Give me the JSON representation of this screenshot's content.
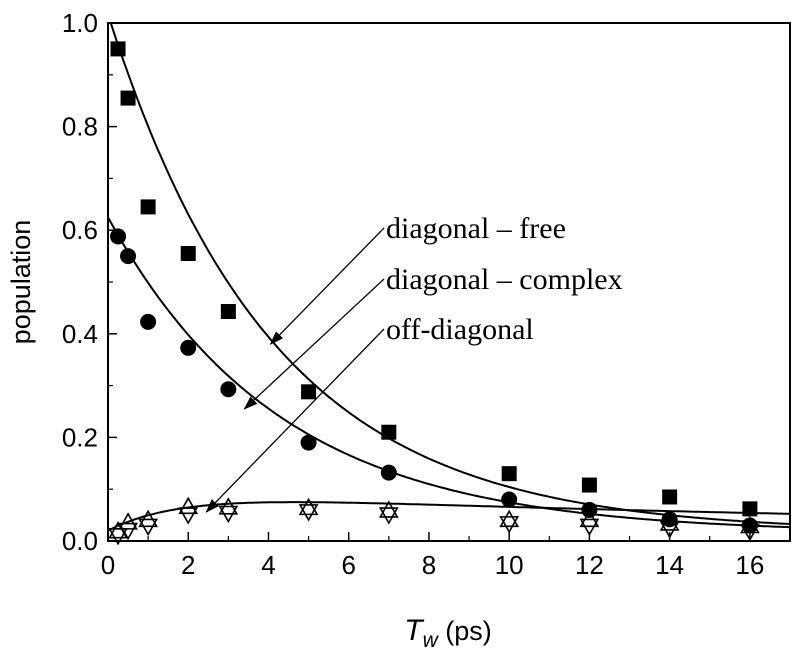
{
  "chart_data": {
    "type": "scatter",
    "xlabel": "T",
    "xlabel_sub": "w",
    "xlabel_unit": " (ps)",
    "ylabel": "population",
    "xlim": [
      0,
      17
    ],
    "ylim": [
      0,
      1.0
    ],
    "xticks": [
      0,
      2,
      4,
      6,
      8,
      10,
      12,
      14,
      16
    ],
    "yticks": [
      0.0,
      0.2,
      0.4,
      0.6,
      0.8,
      1.0
    ],
    "ytick_labels": [
      "0.0",
      "0.2",
      "0.4",
      "0.6",
      "0.8",
      "1.0"
    ],
    "grid": false,
    "series": [
      {
        "marker": "square-filled",
        "x": [
          0.25,
          0.5,
          1,
          2,
          3,
          5,
          7,
          10,
          12,
          14,
          16
        ],
        "y": [
          0.95,
          0.855,
          0.645,
          0.555,
          0.443,
          0.288,
          0.21,
          0.13,
          0.108,
          0.085,
          0.062
        ],
        "fit": {
          "model": "exp",
          "a": 1.0,
          "tau": 4.1,
          "b": 0.017
        }
      },
      {
        "marker": "circle-filled",
        "x": [
          0.25,
          0.5,
          1,
          2,
          3,
          5,
          7,
          10,
          12,
          14,
          16
        ],
        "y": [
          0.588,
          0.55,
          0.423,
          0.373,
          0.293,
          0.19,
          0.132,
          0.08,
          0.06,
          0.042,
          0.03
        ],
        "fit": {
          "model": "exp",
          "a": 0.61,
          "tau": 4.3,
          "b": 0.015
        }
      },
      {
        "marker": "triangle-up-open",
        "x": [
          0.25,
          0.5,
          1,
          2,
          3,
          5,
          7,
          10,
          12,
          14,
          16
        ],
        "y": [
          0.018,
          0.035,
          0.04,
          0.065,
          0.064,
          0.063,
          0.058,
          0.04,
          0.04,
          0.033,
          0.028
        ]
      },
      {
        "marker": "triangle-down-open",
        "x": [
          0.25,
          0.5,
          1,
          2,
          3,
          5,
          7,
          10,
          12,
          14,
          16
        ],
        "y": [
          0.012,
          0.022,
          0.03,
          0.052,
          0.055,
          0.058,
          0.052,
          0.035,
          0.03,
          0.025,
          0.02
        ],
        "fit": {
          "model": "rise-decay",
          "a": 0.076,
          "tau_rise": 1.9,
          "tau_decay": 20,
          "b": 0.02
        }
      }
    ],
    "annotations": [
      {
        "text": "diagonal – free",
        "arrow_to": [
          4.05,
          0.38
        ]
      },
      {
        "text": "diagonal – complex",
        "arrow_to": [
          3.4,
          0.255
        ]
      },
      {
        "text": "off-diagonal",
        "arrow_to": [
          2.45,
          0.056
        ]
      }
    ]
  }
}
